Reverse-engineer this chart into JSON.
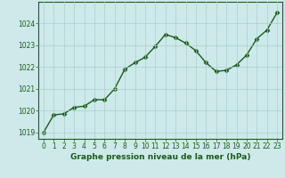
{
  "x": [
    0,
    1,
    2,
    3,
    4,
    5,
    6,
    7,
    8,
    9,
    10,
    11,
    12,
    13,
    14,
    15,
    16,
    17,
    18,
    19,
    20,
    21,
    22,
    23
  ],
  "y": [
    1019.0,
    1019.8,
    1019.85,
    1020.15,
    1020.2,
    1020.5,
    1020.5,
    1021.0,
    1021.9,
    1022.2,
    1022.45,
    1022.95,
    1023.5,
    1023.35,
    1023.1,
    1022.75,
    1022.2,
    1021.8,
    1021.85,
    1022.1,
    1022.55,
    1023.3,
    1023.7,
    1024.5
  ],
  "line_color": "#1a5c1a",
  "marker": "D",
  "marker_size": 2.5,
  "line_width": 1.0,
  "bg_color": "#cee9e9",
  "plot_bg_color": "#cee9e9",
  "grid_color": "#aacece",
  "ylim": [
    1018.7,
    1025.0
  ],
  "yticks": [
    1019,
    1020,
    1021,
    1022,
    1023,
    1024
  ],
  "xticks": [
    0,
    1,
    2,
    3,
    4,
    5,
    6,
    7,
    8,
    9,
    10,
    11,
    12,
    13,
    14,
    15,
    16,
    17,
    18,
    19,
    20,
    21,
    22,
    23
  ],
  "xlabel": "Graphe pression niveau de la mer (hPa)",
  "xlabel_fontsize": 6.5,
  "tick_fontsize": 5.5,
  "ytick_fontsize": 5.5
}
